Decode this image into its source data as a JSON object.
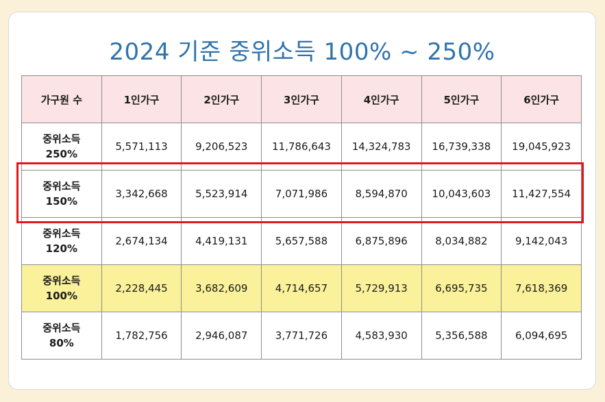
{
  "title": "2024 기준 중위소득 100% ~ 250%",
  "table": {
    "headers": [
      "가구원 수",
      "1인가구",
      "2인가구",
      "3인가구",
      "4인가구",
      "5인가구",
      "6인가구"
    ],
    "rows": [
      {
        "label_line1": "중위소득",
        "label_line2": "250%",
        "values": [
          "5,571,113",
          "9,206,523",
          "11,786,643",
          "14,324,783",
          "16,739,338",
          "19,045,923"
        ]
      },
      {
        "label_line1": "중위소득",
        "label_line2": "150%",
        "values": [
          "3,342,668",
          "5,523,914",
          "7,071,986",
          "8,594,870",
          "10,043,603",
          "11,427,554"
        ]
      },
      {
        "label_line1": "중위소득",
        "label_line2": "120%",
        "values": [
          "2,674,134",
          "4,419,131",
          "5,657,588",
          "6,875,896",
          "8,034,882",
          "9,142,043"
        ]
      },
      {
        "label_line1": "중위소득",
        "label_line2": "100%",
        "values": [
          "2,228,445",
          "3,682,609",
          "4,714,657",
          "5,729,913",
          "6,695,735",
          "7,618,369"
        ]
      },
      {
        "label_line1": "중위소득",
        "label_line2": "80%",
        "values": [
          "1,782,756",
          "2,946,087",
          "3,771,726",
          "4,583,930",
          "5,356,588",
          "6,094,695"
        ]
      }
    ]
  },
  "colors": {
    "title": "#2f73ad",
    "header_bg": "#fce4e6",
    "highlight_row_bg": "#faf19a",
    "emphasis_box": "#e0161b",
    "page_bg": "#fbf1d9"
  }
}
